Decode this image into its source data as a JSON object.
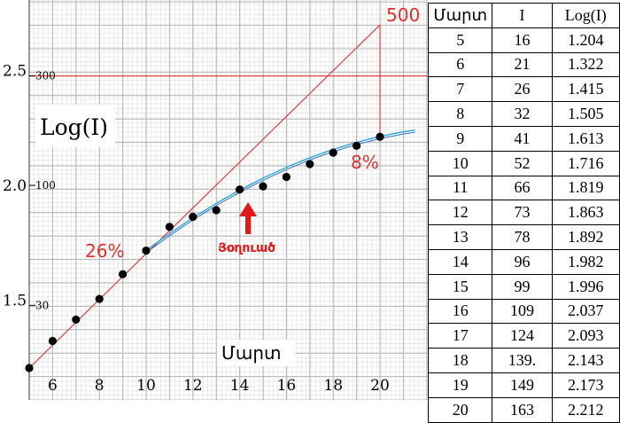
{
  "chart_data": {
    "type": "scatter",
    "x": [
      5,
      6,
      7,
      8,
      9,
      10,
      11,
      12,
      13,
      14,
      15,
      16,
      17,
      18,
      19,
      20
    ],
    "y": [
      1.204,
      1.322,
      1.415,
      1.505,
      1.613,
      1.716,
      1.819,
      1.863,
      1.892,
      1.982,
      1.996,
      2.037,
      2.093,
      2.143,
      2.173,
      2.212
    ],
    "xlim": [
      5,
      21.5
    ],
    "ylim": [
      1.204,
      2.7
    ],
    "xticks": [
      "6",
      "8",
      "10",
      "12",
      "14",
      "16",
      "18",
      "20"
    ],
    "yticks": [
      "1.5",
      "2.0",
      "2.5"
    ],
    "secondary_yticks": [
      "30",
      "100",
      "300"
    ],
    "ylabel": "Log(I)",
    "xlabel": "Մարտ",
    "grid": true,
    "annotations": {
      "label_500": "500",
      "pct_left": "26%",
      "pct_right": "8%",
      "arrow_label": "Յօղուած"
    },
    "colors": {
      "line": "#e03030",
      "fit": "#1aa3e0",
      "points": "#000000",
      "grid": "#c8c8c8"
    }
  },
  "table": {
    "headers": [
      "Մարտ",
      "I",
      "Log(I)"
    ],
    "rows": [
      [
        "5",
        "16",
        "1.204"
      ],
      [
        "6",
        "21",
        "1.322"
      ],
      [
        "7",
        "26",
        "1.415"
      ],
      [
        "8",
        "32",
        "1.505"
      ],
      [
        "9",
        "41",
        "1.613"
      ],
      [
        "10",
        "52",
        "1.716"
      ],
      [
        "11",
        "66",
        "1.819"
      ],
      [
        "12",
        "73",
        "1.863"
      ],
      [
        "13",
        "78",
        "1.892"
      ],
      [
        "14",
        "96",
        "1.982"
      ],
      [
        "15",
        "99",
        "1.996"
      ],
      [
        "16",
        "109",
        "2.037"
      ],
      [
        "17",
        "124",
        "2.093"
      ],
      [
        "18",
        "139.",
        "2.143"
      ],
      [
        "19",
        "149",
        "2.173"
      ],
      [
        "20",
        "163",
        "2.212"
      ]
    ]
  }
}
